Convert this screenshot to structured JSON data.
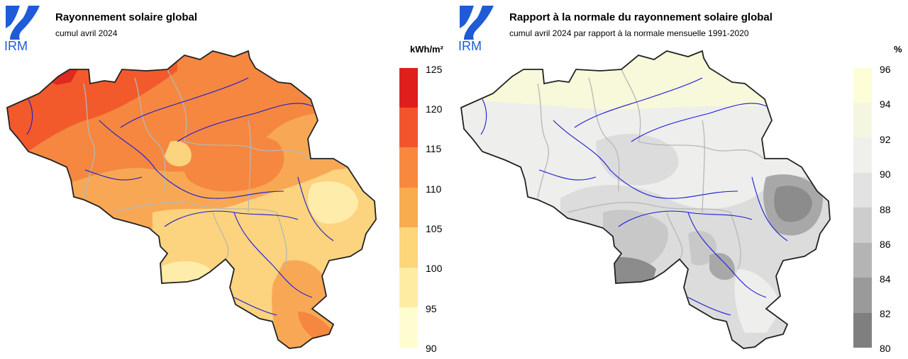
{
  "brand": {
    "logo_text": "IRM",
    "logo_color": "#1f5bd6"
  },
  "left_panel": {
    "title": "Rayonnement solaire global",
    "subtitle": "cumul avril 2024",
    "unit": "kWh/m²",
    "legend_ticks": [
      "125",
      "120",
      "115",
      "110",
      "105",
      "100",
      "95",
      "90"
    ],
    "legend_colors": [
      "#df1f1c",
      "#f4542c",
      "#f8883e",
      "#f9ab4f",
      "#fdd57b",
      "#feeca3",
      "#fffdd0"
    ]
  },
  "right_panel": {
    "title": "Rapport à la normale du rayonnement solaire global",
    "subtitle": "cumul avril 2024 par rapport à la normale mensuelle 1991-2020",
    "unit": "%",
    "legend_ticks": [
      "96",
      "94",
      "92",
      "90",
      "88",
      "86",
      "84",
      "82",
      "80"
    ],
    "legend_colors": [
      "#fdfdd7",
      "#f5f6e2",
      "#efefec",
      "#e2e2e2",
      "#cdcdcd",
      "#b4b4b4",
      "#9a9a9a",
      "#7f7f7f",
      "#6a6a6a"
    ]
  },
  "map_colors": {
    "left": {
      "base": "#f8a854",
      "north": "#f58740",
      "hot": "#f25a2c",
      "max": "#df2a20",
      "pale": "#fcd37f",
      "lightest": "#feecaa"
    },
    "right": {
      "base": "#eeeeec",
      "yellow": "#f8f8da",
      "grey1": "#dcdcdc",
      "grey2": "#c8c8c8",
      "grey3": "#a8a8a8",
      "grey4": "#8c8c8c"
    },
    "river": "#1a1ad6",
    "border": "#b7b7b7",
    "outline": "#222222"
  }
}
